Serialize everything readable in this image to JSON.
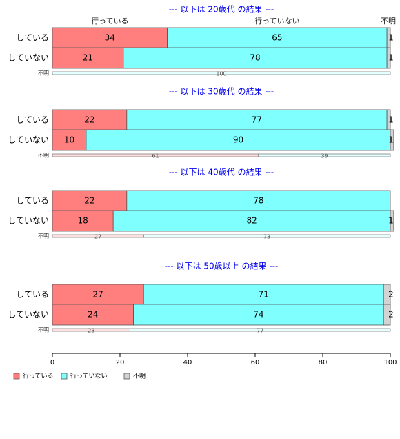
{
  "chart_data": {
    "type": "bar",
    "orientation": "horizontal",
    "stacked": true,
    "column_headers": [
      "行っている",
      "行っていない",
      "不明"
    ],
    "colors": {
      "行っている": "#ff7f7f",
      "行っていない": "#80ffff",
      "不明": "#d3d3d3",
      "title": "#0000ee"
    },
    "xlim": [
      0,
      100
    ],
    "xticks": [
      0,
      20,
      40,
      60,
      80,
      100
    ],
    "grid": false,
    "legend": {
      "position": "bottom-left",
      "entries": [
        "行っている",
        "行っていない",
        "不明"
      ]
    },
    "panels": [
      {
        "title": "--- 以下は 20歳代 の結果 ---",
        "show_column_headers": true,
        "rows": [
          {
            "label": "している",
            "values": [
              34,
              65,
              1
            ]
          },
          {
            "label": "していない",
            "values": [
              21,
              78,
              1
            ]
          },
          {
            "label": "不明",
            "values": [
              0,
              100,
              0
            ],
            "small": true
          }
        ]
      },
      {
        "title": "--- 以下は 30歳代 の結果 ---",
        "show_column_headers": false,
        "rows": [
          {
            "label": "している",
            "values": [
              22,
              77,
              1
            ]
          },
          {
            "label": "していない",
            "values": [
              10,
              90,
              1
            ]
          },
          {
            "label": "不明",
            "values": [
              61,
              39,
              0
            ],
            "small": true
          }
        ]
      },
      {
        "title": "--- 以下は 40歳代 の結果 ---",
        "show_column_headers": false,
        "rows": [
          {
            "label": "している",
            "values": [
              22,
              78,
              0
            ]
          },
          {
            "label": "していない",
            "values": [
              18,
              82,
              1
            ]
          },
          {
            "label": "不明",
            "values": [
              27,
              73,
              0
            ],
            "small": true
          }
        ]
      },
      {
        "title": "--- 以下は 50歳以上 の結果 ---",
        "show_column_headers": false,
        "rows": [
          {
            "label": "している",
            "values": [
              27,
              71,
              2
            ]
          },
          {
            "label": "していない",
            "values": [
              24,
              74,
              2
            ]
          },
          {
            "label": "不明",
            "values": [
              23,
              77,
              0
            ],
            "small": true
          }
        ]
      }
    ]
  }
}
